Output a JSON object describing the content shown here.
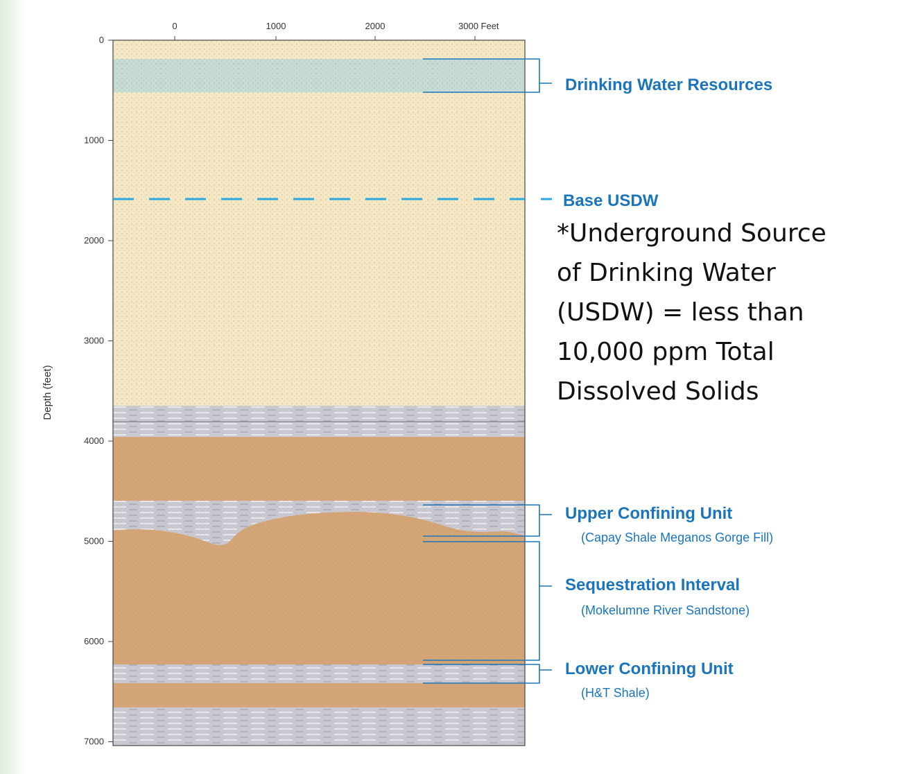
{
  "axis": {
    "top_ticks": [
      "0",
      "1000",
      "2000",
      "3000 Feet"
    ],
    "left_ticks": [
      "0",
      "1000",
      "2000",
      "3000",
      "4000",
      "5000",
      "6000",
      "7000"
    ],
    "left_label": "Depth (feet)"
  },
  "labels": [
    {
      "title": "Drinking Water Resources"
    },
    {
      "title": "Base USDW"
    },
    {
      "title": "Upper Confining Unit",
      "subtitle": "(Capay Shale Meganos Gorge Fill)"
    },
    {
      "title": "Sequestration Interval",
      "subtitle": "(Mokelumne River Sandstone)"
    },
    {
      "title": "Lower Confining Unit",
      "subtitle": "(H&T Shale)"
    }
  ],
  "note": [
    "*Underground Source",
    "of Drinking Water",
    "(USDW) = less than",
    "10,000 ppm Total",
    "Dissolved Solids"
  ]
}
